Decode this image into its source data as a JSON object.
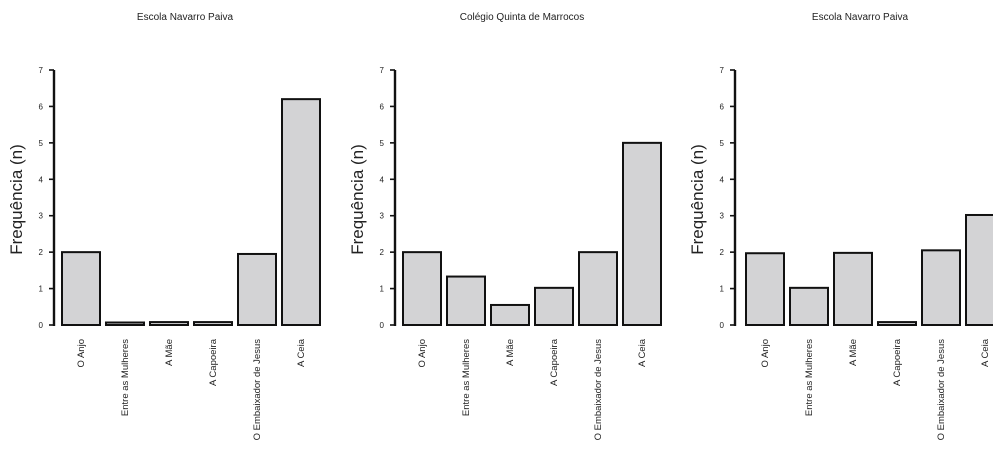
{
  "chart_data": [
    {
      "type": "bar",
      "title": "Escola Navarro Paiva",
      "ylabel": "Frequência (n)",
      "xlabel": "",
      "ylim": [
        0,
        7
      ],
      "yticks": [
        "0",
        "1",
        "2",
        "3",
        "4",
        "5",
        "6",
        "7"
      ],
      "categories": [
        "O Anjo",
        "Entre as Mulheres",
        "A Mãe",
        "A Capoeira",
        "O Embaixador de Jesus",
        "A Ceia"
      ],
      "values": [
        2.0,
        0.05,
        0.08,
        0.08,
        1.95,
        6.2
      ],
      "bar_fill": "#d3d3d5",
      "bar_stroke": "#111111"
    },
    {
      "type": "bar",
      "title": "Colégio Quinta de Marrocos",
      "ylabel": "Frequência (n)",
      "xlabel": "",
      "ylim": [
        0,
        7
      ],
      "yticks": [
        "0",
        "1",
        "2",
        "3",
        "4",
        "5",
        "6",
        "7"
      ],
      "categories": [
        "O Anjo",
        "Entre as Mulheres",
        "A Mãe",
        "A Capoeira",
        "O Embaixador de Jesus",
        "A Ceia"
      ],
      "values": [
        2.0,
        1.33,
        0.55,
        1.02,
        2.0,
        5.0
      ],
      "bar_fill": "#d3d3d5",
      "bar_stroke": "#111111"
    },
    {
      "type": "bar",
      "title": "Escola Navarro Paiva",
      "ylabel": "Frequência (n)",
      "xlabel": "",
      "ylim": [
        0,
        7
      ],
      "yticks": [
        "0",
        "1",
        "2",
        "3",
        "4",
        "5",
        "6",
        "7"
      ],
      "categories": [
        "O Anjo",
        "Entre as Mulheres",
        "A Mãe",
        "A Capoeira",
        "O Embaixador de Jesus",
        "A Ceia"
      ],
      "values": [
        1.97,
        1.02,
        1.98,
        0.08,
        2.05,
        3.02
      ],
      "bar_fill": "#d3d3d5",
      "bar_stroke": "#111111"
    }
  ]
}
